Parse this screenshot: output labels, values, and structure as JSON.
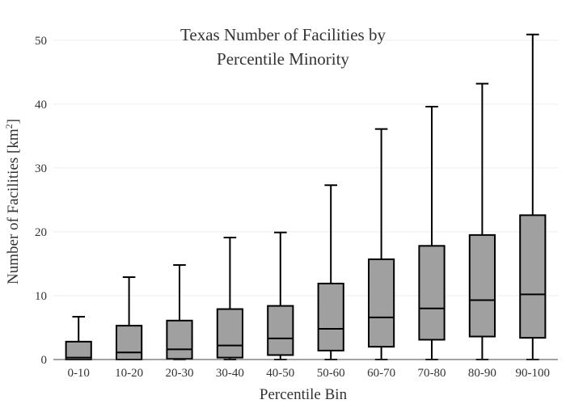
{
  "chart_data": {
    "type": "box",
    "title_lines": [
      "Texas Number of Facilities by",
      "Percentile Minority"
    ],
    "xlabel": "Percentile Bin",
    "ylabel_main": "Number of Facilities  [km",
    "ylabel_sup": "2",
    "ylabel_end": "]",
    "ylim": [
      0,
      52
    ],
    "yticks": [
      0,
      10,
      20,
      30,
      40,
      50
    ],
    "grid": true,
    "colors": {
      "box_fill": "#a0a0a0",
      "box_stroke": "#000000",
      "grid": "#eeeeee"
    },
    "categories": [
      "0-10",
      "10-20",
      "20-30",
      "30-40",
      "40-50",
      "50-60",
      "60-70",
      "70-80",
      "80-90",
      "90-100"
    ],
    "boxes": [
      {
        "min": 0,
        "q1": 0.0,
        "median": 0.3,
        "q3": 2.8,
        "max": 6.7
      },
      {
        "min": 0,
        "q1": 0.0,
        "median": 1.1,
        "q3": 5.3,
        "max": 12.9
      },
      {
        "min": 0,
        "q1": 0.1,
        "median": 1.6,
        "q3": 6.1,
        "max": 14.8
      },
      {
        "min": 0,
        "q1": 0.3,
        "median": 2.2,
        "q3": 7.9,
        "max": 19.1
      },
      {
        "min": 0,
        "q1": 0.7,
        "median": 3.3,
        "q3": 8.4,
        "max": 19.9
      },
      {
        "min": 0,
        "q1": 1.4,
        "median": 4.8,
        "q3": 11.9,
        "max": 27.3
      },
      {
        "min": 0,
        "q1": 2.0,
        "median": 6.6,
        "q3": 15.7,
        "max": 36.1
      },
      {
        "min": 0,
        "q1": 3.1,
        "median": 8.0,
        "q3": 17.8,
        "max": 39.6
      },
      {
        "min": 0,
        "q1": 3.6,
        "median": 9.3,
        "q3": 19.5,
        "max": 43.2
      },
      {
        "min": 0,
        "q1": 3.4,
        "median": 10.2,
        "q3": 22.6,
        "max": 50.9
      }
    ]
  }
}
